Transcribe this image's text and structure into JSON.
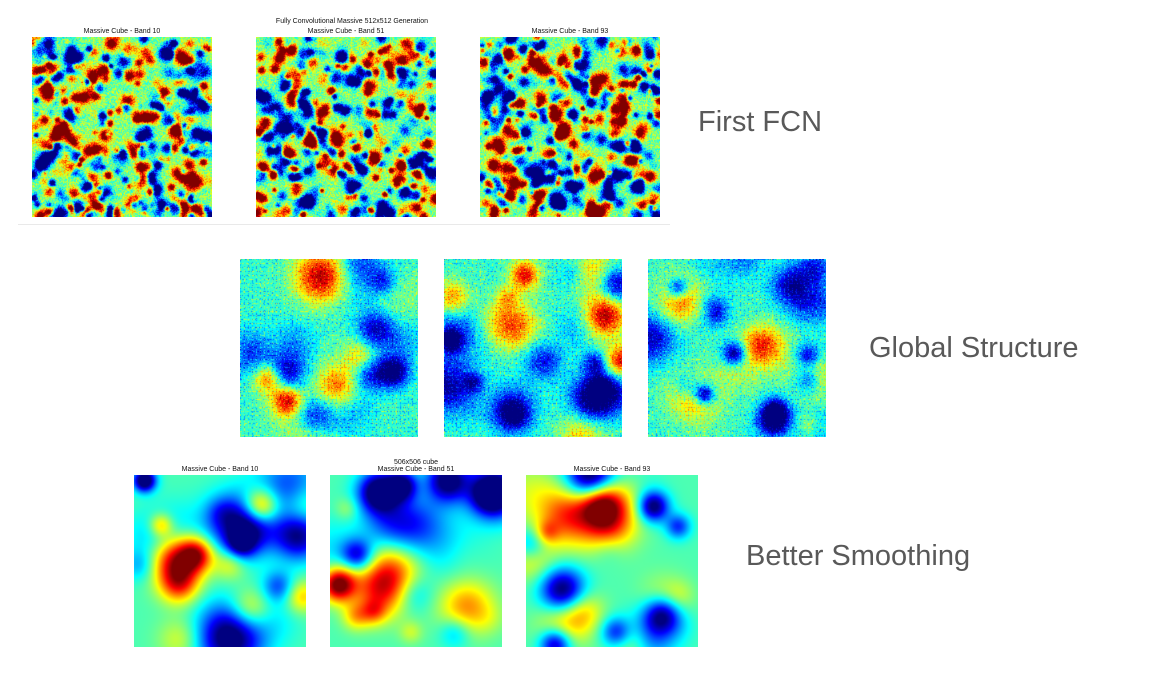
{
  "rows": [
    {
      "label": "First FCN",
      "figure_title": "Fully Convolutional Massive 512x512 Generation",
      "panels": [
        {
          "title": "Massive Cube - Band 10",
          "style": "noise",
          "seed": 11
        },
        {
          "title": "Massive Cube - Band 51",
          "style": "noise",
          "seed": 23
        },
        {
          "title": "Massive Cube - Band 93",
          "style": "noise",
          "seed": 37
        }
      ]
    },
    {
      "label": "Global Structure",
      "figure_title": "",
      "panels": [
        {
          "title": "",
          "style": "grid",
          "seed": 41
        },
        {
          "title": "",
          "style": "grid",
          "seed": 53
        },
        {
          "title": "",
          "style": "grid",
          "seed": 67
        }
      ]
    },
    {
      "label": "Better Smoothing",
      "figure_title": "506x506 cube",
      "panels": [
        {
          "title": "Massive Cube - Band 10",
          "style": "smooth",
          "seed": 71
        },
        {
          "title": "Massive Cube - Band 51",
          "style": "smooth",
          "seed": 83
        },
        {
          "title": "Massive Cube - Band 93",
          "style": "smooth",
          "seed": 97
        }
      ]
    }
  ],
  "colormap": "jet"
}
